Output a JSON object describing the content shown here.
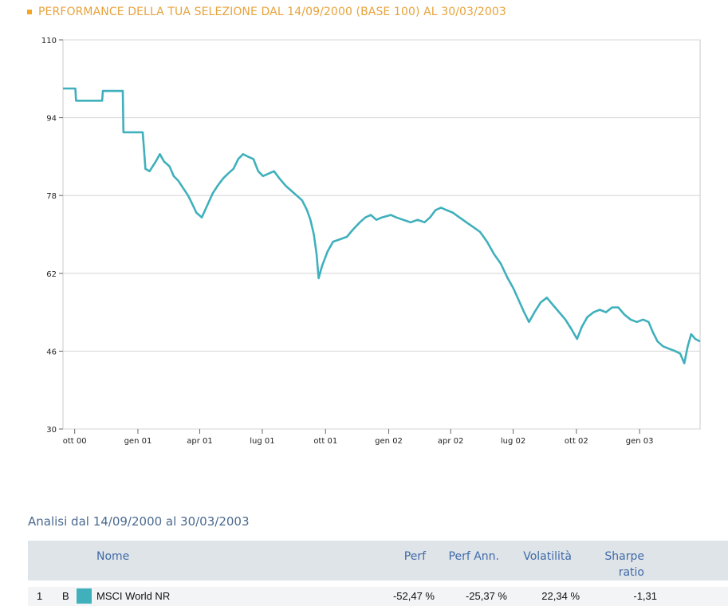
{
  "title": "PERFORMANCE DELLA TUA SELEZIONE DAL 14/09/2000 (BASE 100) AL 30/03/2003",
  "colors": {
    "title": "#e8a33c",
    "series": "#3fb0bc",
    "header_bg": "#dfe4e8",
    "header_text": "#3f6aa8"
  },
  "chart_data": {
    "type": "line",
    "title": "PERFORMANCE DELLA TUA SELEZIONE DAL 14/09/2000 (BASE 100) AL 30/03/2003",
    "xlabel": "",
    "ylabel": "",
    "ylim": [
      30,
      110
    ],
    "yticks": [
      "110",
      "94",
      "78",
      "62",
      "46",
      "30"
    ],
    "ytick_values": [
      110,
      94,
      78,
      62,
      46,
      30
    ],
    "xlim": [
      "2000-09-14",
      "2003-03-30"
    ],
    "xticks": [
      {
        "label": "ott 00",
        "date": "2000-10-01"
      },
      {
        "label": "gen 01",
        "date": "2001-01-01"
      },
      {
        "label": "apr 01",
        "date": "2001-04-01"
      },
      {
        "label": "lug 01",
        "date": "2001-07-01"
      },
      {
        "label": "ott 01",
        "date": "2001-10-01"
      },
      {
        "label": "gen 02",
        "date": "2002-01-01"
      },
      {
        "label": "apr 02",
        "date": "2002-04-01"
      },
      {
        "label": "lug 02",
        "date": "2002-07-01"
      },
      {
        "label": "ott 02",
        "date": "2002-10-01"
      },
      {
        "label": "gen 03",
        "date": "2003-01-01"
      }
    ],
    "grid": true,
    "legend": "none",
    "series": [
      {
        "color": "#3fb0bc",
        "points": [
          [
            "2000-09-14",
            100
          ],
          [
            "2000-10-02",
            100
          ],
          [
            "2000-10-03",
            97.5
          ],
          [
            "2000-11-10",
            97.5
          ],
          [
            "2000-11-11",
            99.5
          ],
          [
            "2000-12-10",
            99.5
          ],
          [
            "2000-12-11",
            91
          ],
          [
            "2001-01-08",
            91
          ],
          [
            "2001-01-12",
            83.5
          ],
          [
            "2001-01-18",
            83
          ],
          [
            "2001-01-27",
            85
          ],
          [
            "2001-02-02",
            86.5
          ],
          [
            "2001-02-08",
            85
          ],
          [
            "2001-02-16",
            84
          ],
          [
            "2001-02-22",
            82
          ],
          [
            "2001-03-01",
            81
          ],
          [
            "2001-03-08",
            79.5
          ],
          [
            "2001-03-15",
            78
          ],
          [
            "2001-03-22",
            76
          ],
          [
            "2001-03-27",
            74.5
          ],
          [
            "2001-04-04",
            73.5
          ],
          [
            "2001-04-12",
            76
          ],
          [
            "2001-04-20",
            78.5
          ],
          [
            "2001-04-27",
            80
          ],
          [
            "2001-05-05",
            81.5
          ],
          [
            "2001-05-12",
            82.5
          ],
          [
            "2001-05-20",
            83.5
          ],
          [
            "2001-05-27",
            85.5
          ],
          [
            "2001-06-03",
            86.5
          ],
          [
            "2001-06-10",
            86
          ],
          [
            "2001-06-18",
            85.5
          ],
          [
            "2001-06-25",
            83
          ],
          [
            "2001-07-02",
            82
          ],
          [
            "2001-07-10",
            82.5
          ],
          [
            "2001-07-18",
            83
          ],
          [
            "2001-07-26",
            81.5
          ],
          [
            "2001-08-04",
            80
          ],
          [
            "2001-08-12",
            79
          ],
          [
            "2001-08-20",
            78
          ],
          [
            "2001-08-28",
            77
          ],
          [
            "2001-09-04",
            75
          ],
          [
            "2001-09-09",
            73
          ],
          [
            "2001-09-14",
            70
          ],
          [
            "2001-09-18",
            66
          ],
          [
            "2001-09-21",
            61
          ],
          [
            "2001-09-26",
            63.5
          ],
          [
            "2001-10-04",
            66.5
          ],
          [
            "2001-10-12",
            68.5
          ],
          [
            "2001-10-22",
            69
          ],
          [
            "2001-11-01",
            69.5
          ],
          [
            "2001-11-10",
            71
          ],
          [
            "2001-11-20",
            72.5
          ],
          [
            "2001-11-28",
            73.5
          ],
          [
            "2001-12-06",
            74
          ],
          [
            "2001-12-14",
            73
          ],
          [
            "2001-12-22",
            73.5
          ],
          [
            "2002-01-04",
            74
          ],
          [
            "2002-01-12",
            73.5
          ],
          [
            "2002-01-22",
            73
          ],
          [
            "2002-02-02",
            72.5
          ],
          [
            "2002-02-12",
            73
          ],
          [
            "2002-02-22",
            72.5
          ],
          [
            "2002-03-02",
            73.5
          ],
          [
            "2002-03-10",
            75
          ],
          [
            "2002-03-18",
            75.5
          ],
          [
            "2002-03-26",
            75
          ],
          [
            "2002-04-04",
            74.5
          ],
          [
            "2002-04-14",
            73.5
          ],
          [
            "2002-04-24",
            72.5
          ],
          [
            "2002-05-04",
            71.5
          ],
          [
            "2002-05-14",
            70.5
          ],
          [
            "2002-05-24",
            68.5
          ],
          [
            "2002-06-03",
            66
          ],
          [
            "2002-06-13",
            64
          ],
          [
            "2002-06-23",
            61
          ],
          [
            "2002-07-01",
            59
          ],
          [
            "2002-07-09",
            56.5
          ],
          [
            "2002-07-17",
            54
          ],
          [
            "2002-07-24",
            52
          ],
          [
            "2002-08-01",
            54
          ],
          [
            "2002-08-10",
            56
          ],
          [
            "2002-08-19",
            57
          ],
          [
            "2002-08-28",
            55.5
          ],
          [
            "2002-09-06",
            54
          ],
          [
            "2002-09-15",
            52.5
          ],
          [
            "2002-09-24",
            50.5
          ],
          [
            "2002-10-02",
            48.5
          ],
          [
            "2002-10-09",
            51
          ],
          [
            "2002-10-17",
            53
          ],
          [
            "2002-10-26",
            54
          ],
          [
            "2002-11-04",
            54.5
          ],
          [
            "2002-11-13",
            54
          ],
          [
            "2002-11-22",
            55
          ],
          [
            "2002-12-01",
            55
          ],
          [
            "2002-12-10",
            53.5
          ],
          [
            "2002-12-19",
            52.5
          ],
          [
            "2002-12-28",
            52
          ],
          [
            "2003-01-06",
            52.5
          ],
          [
            "2003-01-14",
            52
          ],
          [
            "2003-01-20",
            50
          ],
          [
            "2003-01-27",
            48
          ],
          [
            "2003-02-04",
            47
          ],
          [
            "2003-02-13",
            46.5
          ],
          [
            "2003-02-22",
            46
          ],
          [
            "2003-03-01",
            45.5
          ],
          [
            "2003-03-07",
            43.5
          ],
          [
            "2003-03-12",
            47
          ],
          [
            "2003-03-17",
            49.5
          ],
          [
            "2003-03-23",
            48.5
          ],
          [
            "2003-03-30",
            48
          ]
        ]
      }
    ]
  },
  "analysis": {
    "title": "Analisi dal 14/09/2000 al 30/03/2003",
    "headers": {
      "nome": "Nome",
      "perf": "Perf",
      "perf_ann": "Perf Ann.",
      "volatilita": "Volatilità",
      "sharpe_line1": "Sharpe",
      "sharpe_line2": "ratio"
    },
    "rows": [
      {
        "index": "1",
        "code": "B",
        "name": "MSCI World NR",
        "perf": "-52,47 %",
        "perf_ann": "-25,37 %",
        "volatilita": "22,34 %",
        "sharpe": "-1,31",
        "color": "#3fb0bc"
      }
    ]
  }
}
